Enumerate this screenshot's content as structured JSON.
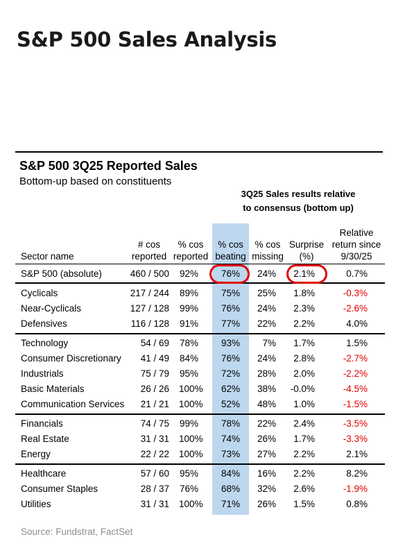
{
  "page_title": "S&P 500 Sales Analysis",
  "table_title": "S&P 500 3Q25 Reported Sales",
  "table_subtitle": "Bottom-up based on constituents",
  "group_header": "3Q25 Sales results relative\nto consensus (bottom up)",
  "source": "Source: Fundstrat, FactSet",
  "colors": {
    "highlight": "#bdd7ee",
    "negative": "#e00000",
    "circle": "#e00000"
  },
  "chart_data": {
    "type": "table",
    "title": "S&P 500 3Q25 Reported Sales",
    "subtitle": "Bottom-up based on constituents",
    "highlighted_column": "% cos beating",
    "circled_cells": [
      [
        "S&P 500 (absolute)",
        "% cos beating"
      ],
      [
        "S&P 500 (absolute)",
        "Surprise (%)"
      ]
    ],
    "columns": [
      "Sector name",
      "# cos reported",
      "% cos reported",
      "% cos beating",
      "% cos missing",
      "Surprise (%)",
      "Relative return since 9/30/25"
    ],
    "rows": [
      {
        "sector": "S&P 500 (absolute)",
        "reported": "460 / 500",
        "pct_reported": "92%",
        "beating": "76%",
        "missing": "24%",
        "surprise": "2.1%",
        "ret": "0.7%"
      },
      {
        "sector": "Cyclicals",
        "reported": "217 / 244",
        "pct_reported": "89%",
        "beating": "75%",
        "missing": "25%",
        "surprise": "1.8%",
        "ret": "-0.3%"
      },
      {
        "sector": "Near-Cyclicals",
        "reported": "127 / 128",
        "pct_reported": "99%",
        "beating": "76%",
        "missing": "24%",
        "surprise": "2.3%",
        "ret": "-2.6%"
      },
      {
        "sector": "Defensives",
        "reported": "116 / 128",
        "pct_reported": "91%",
        "beating": "77%",
        "missing": "22%",
        "surprise": "2.2%",
        "ret": "4.0%"
      },
      {
        "sector": "Technology",
        "reported": "54 / 69",
        "pct_reported": "78%",
        "beating": "93%",
        "missing": "7%",
        "surprise": "1.7%",
        "ret": "1.5%"
      },
      {
        "sector": "Consumer Discretionary",
        "reported": "41 / 49",
        "pct_reported": "84%",
        "beating": "76%",
        "missing": "24%",
        "surprise": "2.8%",
        "ret": "-2.7%"
      },
      {
        "sector": "Industrials",
        "reported": "75 / 79",
        "pct_reported": "95%",
        "beating": "72%",
        "missing": "28%",
        "surprise": "2.0%",
        "ret": "-2.2%"
      },
      {
        "sector": "Basic Materials",
        "reported": "26 / 26",
        "pct_reported": "100%",
        "beating": "62%",
        "missing": "38%",
        "surprise": "-0.0%",
        "ret": "-4.5%"
      },
      {
        "sector": "Communication Services",
        "reported": "21 / 21",
        "pct_reported": "100%",
        "beating": "52%",
        "missing": "48%",
        "surprise": "1.0%",
        "ret": "-1.5%"
      },
      {
        "sector": "Financials",
        "reported": "74 / 75",
        "pct_reported": "99%",
        "beating": "78%",
        "missing": "22%",
        "surprise": "2.4%",
        "ret": "-3.5%"
      },
      {
        "sector": "Real Estate",
        "reported": "31 / 31",
        "pct_reported": "100%",
        "beating": "74%",
        "missing": "26%",
        "surprise": "1.7%",
        "ret": "-3.3%"
      },
      {
        "sector": "Energy",
        "reported": "22 / 22",
        "pct_reported": "100%",
        "beating": "73%",
        "missing": "27%",
        "surprise": "2.2%",
        "ret": "2.1%"
      },
      {
        "sector": "Healthcare",
        "reported": "57 / 60",
        "pct_reported": "95%",
        "beating": "84%",
        "missing": "16%",
        "surprise": "2.2%",
        "ret": "8.2%"
      },
      {
        "sector": "Consumer Staples",
        "reported": "28 / 37",
        "pct_reported": "76%",
        "beating": "68%",
        "missing": "32%",
        "surprise": "2.6%",
        "ret": "-1.9%"
      },
      {
        "sector": "Utilities",
        "reported": "31 / 31",
        "pct_reported": "100%",
        "beating": "71%",
        "missing": "26%",
        "surprise": "1.5%",
        "ret": "0.8%"
      }
    ]
  }
}
